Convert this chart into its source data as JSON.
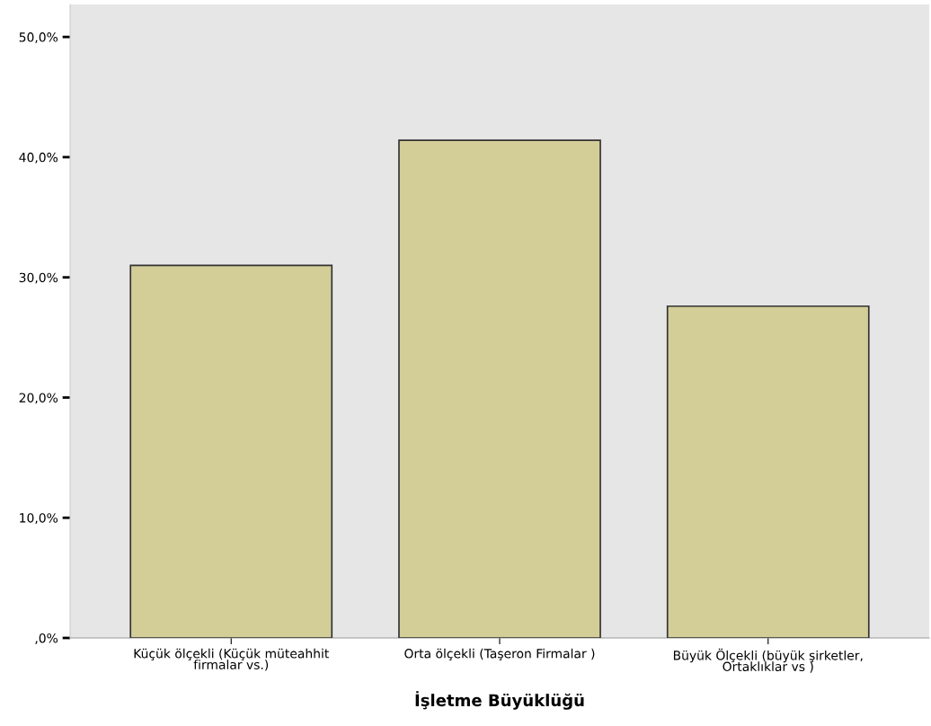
{
  "chart_data": {
    "type": "bar",
    "xlabel": "İşletme Büyüklüğü",
    "categories": [
      "Küçük ölçekli (Küçük müteahhit\nfirmalar vs.)",
      "Orta ölçekli (Taşeron Firmalar )",
      "Büyük Ölçekli (büyük şirketler,\nOrtaklıklar vs )"
    ],
    "values": [
      31.0,
      41.4,
      27.6
    ],
    "color": "#d3cd98",
    "ylim": [
      0,
      52.7
    ],
    "yticks": [
      {
        "value": 0,
        "label": ",0%"
      },
      {
        "value": 10,
        "label": "10,0%"
      },
      {
        "value": 20,
        "label": "20,0%"
      },
      {
        "value": 30,
        "label": "30,0%"
      },
      {
        "value": 40,
        "label": "40,0%"
      },
      {
        "value": 50,
        "label": "50,0%"
      }
    ],
    "grid": false
  }
}
